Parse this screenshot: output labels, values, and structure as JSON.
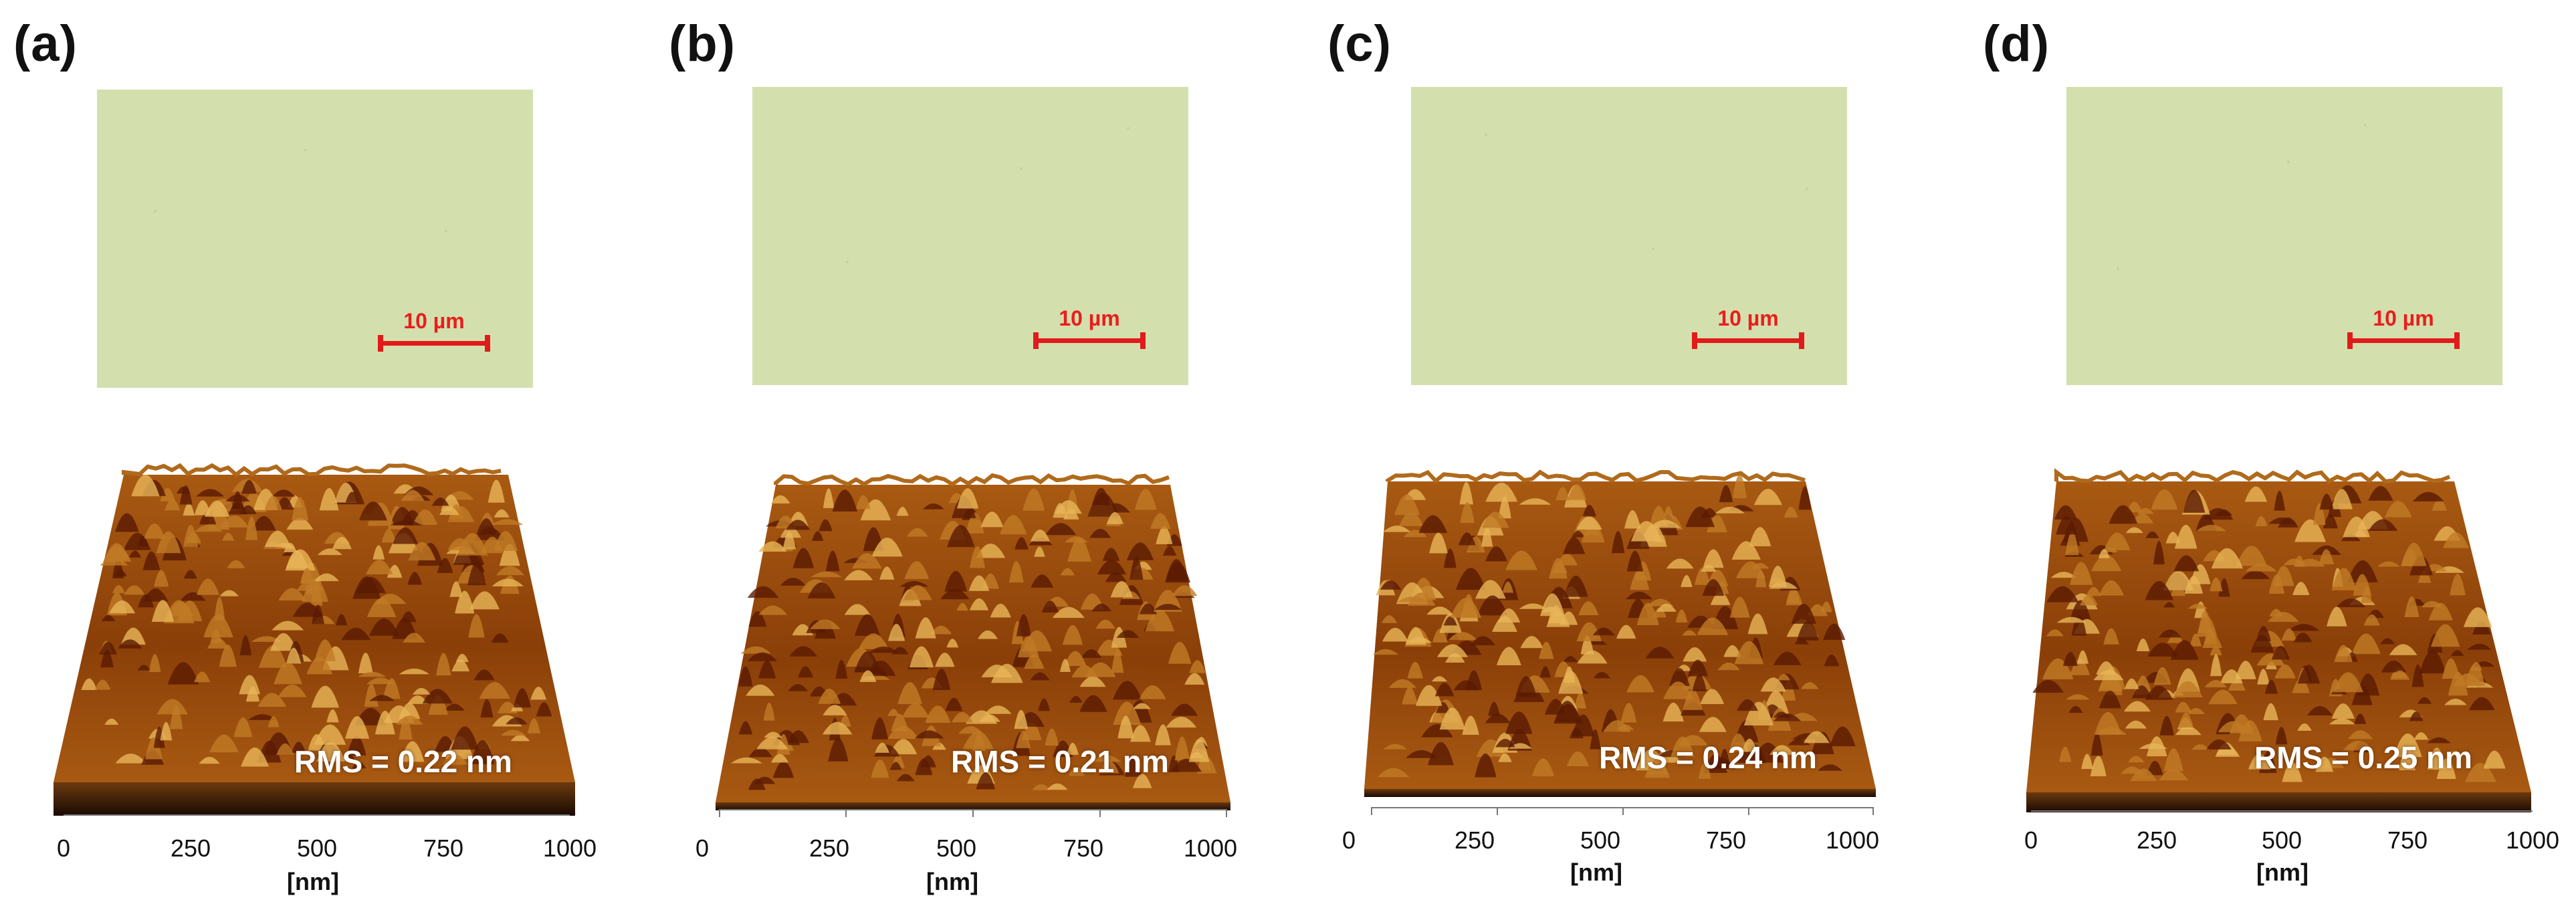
{
  "panels": [
    {
      "label": "(a)",
      "scale_bar": "10 µm",
      "rms": "RMS = 0.22 nm",
      "axis": {
        "ticks": [
          "0",
          "250",
          "500",
          "750",
          "1000"
        ],
        "unit": "[nm]"
      }
    },
    {
      "label": "(b)",
      "scale_bar": "10 µm",
      "rms": "RMS = 0.21 nm",
      "axis": {
        "ticks": [
          "0",
          "250",
          "500",
          "750",
          "1000"
        ],
        "unit": "[nm]"
      }
    },
    {
      "label": "(c)",
      "scale_bar": "10 µm",
      "rms": "RMS = 0.24 nm",
      "axis": {
        "ticks": [
          "0",
          "250",
          "500",
          "750",
          "1000"
        ],
        "unit": "[nm]"
      }
    },
    {
      "label": "(d)",
      "scale_bar": "10 µm",
      "rms": "RMS = 0.25 nm",
      "axis": {
        "ticks": [
          "0",
          "250",
          "500",
          "750",
          "1000"
        ],
        "unit": "[nm]"
      }
    }
  ],
  "colors": {
    "micrograph_bg": "#d3e0ae",
    "scale_bar": "#e11b1b",
    "afm_dark": "#5a1a02",
    "afm_mid": "#a85a12",
    "afm_light": "#e8b558"
  }
}
